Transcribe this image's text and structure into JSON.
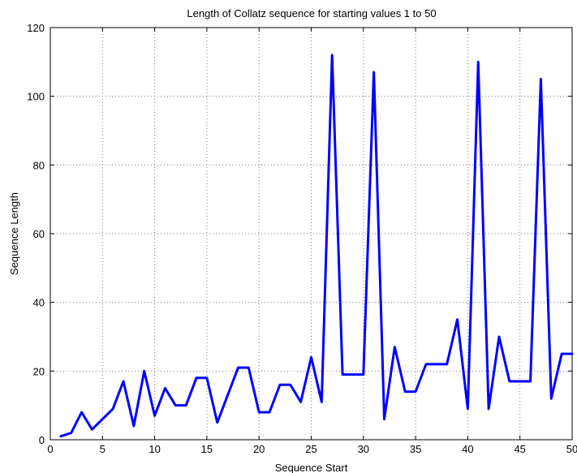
{
  "chart_data": {
    "type": "line",
    "title": "Length of Collatz sequence for starting values 1 to 50",
    "xlabel": "Sequence Start",
    "ylabel": "Sequence Length",
    "xlim": [
      0,
      50
    ],
    "ylim": [
      0,
      120
    ],
    "xticks": [
      0,
      5,
      10,
      15,
      20,
      25,
      30,
      35,
      40,
      45,
      50
    ],
    "yticks": [
      0,
      20,
      40,
      60,
      80,
      100,
      120
    ],
    "grid": true,
    "series_color": "#0000ff",
    "x": [
      1,
      2,
      3,
      4,
      5,
      6,
      7,
      8,
      9,
      10,
      11,
      12,
      13,
      14,
      15,
      16,
      17,
      18,
      19,
      20,
      21,
      22,
      23,
      24,
      25,
      26,
      27,
      28,
      29,
      30,
      31,
      32,
      33,
      34,
      35,
      36,
      37,
      38,
      39,
      40,
      41,
      42,
      43,
      44,
      45,
      46,
      47,
      48,
      49,
      50
    ],
    "values": [
      1,
      2,
      8,
      3,
      6,
      9,
      17,
      4,
      20,
      7,
      15,
      10,
      10,
      18,
      18,
      5,
      13,
      21,
      21,
      8,
      8,
      16,
      16,
      11,
      24,
      11,
      112,
      19,
      19,
      19,
      107,
      6,
      27,
      14,
      14,
      22,
      22,
      22,
      35,
      9,
      110,
      9,
      30,
      17,
      17,
      17,
      105,
      12,
      25,
      25
    ]
  }
}
